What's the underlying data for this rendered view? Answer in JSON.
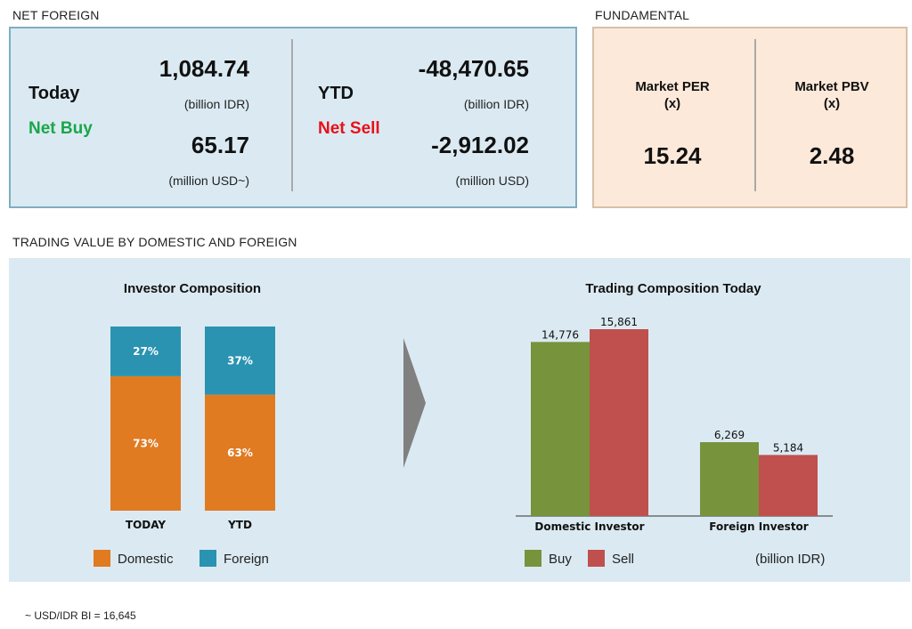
{
  "net_foreign": {
    "title": "NET FOREIGN",
    "today": {
      "period": "Today",
      "flow": "Net Buy",
      "idr_value": "1,084.74",
      "idr_unit": "(billion IDR)",
      "usd_value": "65.17",
      "usd_unit": "(million USD~)"
    },
    "ytd": {
      "period": "YTD",
      "flow": "Net Sell",
      "idr_value": "-48,470.65",
      "idr_unit": "(billion IDR)",
      "usd_value": "-2,912.02",
      "usd_unit": "(million USD)"
    }
  },
  "fundamental": {
    "title": "FUNDAMENTAL",
    "per_label_1": "Market PER",
    "per_label_2": "(x)",
    "per_value": "15.24",
    "pbv_label_1": "Market PBV",
    "pbv_label_2": "(x)",
    "pbv_value": "2.48"
  },
  "trading": {
    "title": "TRADING VALUE BY DOMESTIC AND FOREIGN",
    "legend_left": [
      "Domestic",
      "Foreign"
    ],
    "legend_right": [
      "Buy",
      "Sell"
    ],
    "unit_note": "(billion IDR)"
  },
  "footnote": "~ USD/IDR BI = 16,645",
  "colors": {
    "domestic": "#e07b22",
    "foreign": "#2a93b1",
    "buy": "#77933c",
    "sell": "#c0504d",
    "net_buy": "#1aa64b",
    "net_sell": "#e8101a"
  },
  "chart_data": [
    {
      "type": "bar",
      "stacked": true,
      "title": "Investor Composition",
      "categories": [
        "TODAY",
        "YTD"
      ],
      "series": [
        {
          "name": "Domestic",
          "values": [
            73,
            63
          ],
          "labels": [
            "73%",
            "63%"
          ]
        },
        {
          "name": "Foreign",
          "values": [
            27,
            37
          ],
          "labels": [
            "27%",
            "37%"
          ]
        }
      ],
      "ylim": [
        0,
        100
      ],
      "legend": "bottom"
    },
    {
      "type": "bar",
      "title": "Trading Composition Today",
      "categories": [
        "Domestic Investor",
        "Foreign Investor"
      ],
      "series": [
        {
          "name": "Buy",
          "values": [
            14776,
            6269
          ],
          "labels": [
            "14,776",
            "6,269"
          ]
        },
        {
          "name": "Sell",
          "values": [
            15861,
            5184
          ],
          "labels": [
            "15,861",
            "5,184"
          ]
        }
      ],
      "ylim": [
        0,
        15861
      ],
      "legend": "bottom"
    }
  ]
}
